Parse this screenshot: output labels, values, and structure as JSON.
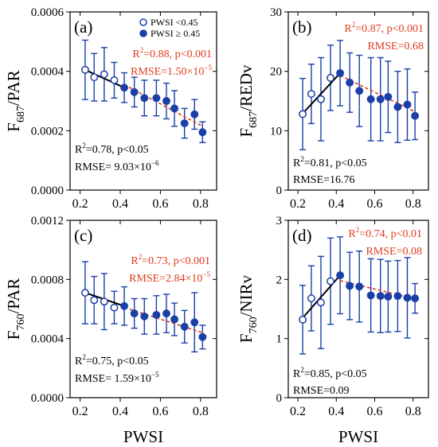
{
  "colors": {
    "marker": "#1a3fa8",
    "errorbar": "#1a3fa8",
    "fit_low": "#000000",
    "fit_high": "#e03a1e",
    "text_low": "#000000",
    "text_high": "#e03a1e"
  },
  "chart_data": [
    {
      "type": "scatter",
      "panel_label": "(a)",
      "xlabel": "",
      "ylabel_main": "F",
      "ylabel_sub": "687",
      "ylabel_rest": "/PAR",
      "xlim": [
        0.15,
        0.88
      ],
      "ylim": [
        0,
        0.0006
      ],
      "xticks": [
        0.2,
        0.4,
        0.6,
        0.8
      ],
      "xtick_labels": [
        "0.2",
        "0.4",
        "0.6",
        "0.8"
      ],
      "yticks": [
        0,
        0.0002,
        0.0004,
        0.0006
      ],
      "ytick_labels": [
        "0.0000",
        "0.0002",
        "0.0004",
        "0.0006"
      ],
      "legend": {
        "open_label": "PWSI <0.45",
        "filled_label": "PWSI ≥ 0.45"
      },
      "series": [
        {
          "name": "PWSI <0.45",
          "marker": "open",
          "x": [
            0.225,
            0.27,
            0.32,
            0.37
          ],
          "y": [
            0.000405,
            0.00038,
            0.00039,
            0.00037
          ],
          "err": [
            0.0001,
            8e-05,
            9e-05,
            6e-05
          ]
        },
        {
          "name": "PWSI ≥ 0.45",
          "marker": "filled",
          "x": [
            0.42,
            0.47,
            0.52,
            0.58,
            0.63,
            0.67,
            0.72,
            0.77,
            0.81
          ],
          "y": [
            0.000345,
            0.00033,
            0.00031,
            0.00031,
            0.0003,
            0.000275,
            0.000225,
            0.000255,
            0.000195
          ],
          "err": [
            5e-05,
            5e-05,
            6e-05,
            6e-05,
            6e-05,
            6e-05,
            5e-05,
            5e-05,
            3.5e-05
          ]
        }
      ],
      "fits": [
        {
          "x": [
            0.225,
            0.42
          ],
          "y": [
            0.000405,
            0.000345
          ],
          "style": "solid",
          "color": "#000000"
        },
        {
          "x": [
            0.42,
            0.81
          ],
          "y": [
            0.000355,
            0.000215
          ],
          "style": "dashed",
          "color": "#e03a1e"
        }
      ],
      "stats_high": {
        "r2": "=0.88, p<0.001",
        "rmse_main": "RMSE=1.50×10",
        "rmse_exp": "−5"
      },
      "stats_low": {
        "r2": "=0.78, p<0.05",
        "rmse_main": "RMSE= 9.03×10",
        "rmse_exp": "−6"
      }
    },
    {
      "type": "scatter",
      "panel_label": "(b)",
      "xlabel": "",
      "ylabel_main": "F",
      "ylabel_sub": "687",
      "ylabel_rest": "/REDv",
      "xlim": [
        0.15,
        0.88
      ],
      "ylim": [
        0,
        30
      ],
      "xticks": [
        0.2,
        0.4,
        0.6,
        0.8
      ],
      "xtick_labels": [
        "0.2",
        "0.4",
        "0.6",
        "0.8"
      ],
      "yticks": [
        0,
        10,
        20,
        30
      ],
      "ytick_labels": [
        "0",
        "10",
        "20",
        "30"
      ],
      "series": [
        {
          "name": "",
          "marker": "open",
          "x": [
            0.225,
            0.27,
            0.32,
            0.37
          ],
          "y": [
            12.8,
            16.2,
            15.3,
            18.9
          ],
          "err": [
            6,
            5,
            7,
            5.5
          ]
        },
        {
          "name": "",
          "marker": "filled",
          "x": [
            0.42,
            0.47,
            0.52,
            0.58,
            0.63,
            0.67,
            0.72,
            0.77,
            0.81
          ],
          "y": [
            19.7,
            18.1,
            16.7,
            15.3,
            15.3,
            15.7,
            14.0,
            14.4,
            12.5
          ],
          "err": [
            5.5,
            5,
            6,
            7,
            7,
            6,
            6,
            6,
            4
          ]
        }
      ],
      "fits": [
        {
          "x": [
            0.225,
            0.42
          ],
          "y": [
            12.9,
            19.7
          ],
          "style": "solid",
          "color": "#000000"
        },
        {
          "x": [
            0.42,
            0.81
          ],
          "y": [
            19.3,
            13.2
          ],
          "style": "dashed",
          "color": "#e03a1e"
        }
      ],
      "stats_high": {
        "r2": "=0.87, p<0.001",
        "rmse_main": "RMSE=0.68",
        "rmse_exp": ""
      },
      "stats_low": {
        "r2": "=0.81, p<0.05",
        "rmse_main": "RMSE=16.76",
        "rmse_exp": ""
      }
    },
    {
      "type": "scatter",
      "panel_label": "(c)",
      "xlabel": "PWSI",
      "ylabel_main": "F",
      "ylabel_sub": "760",
      "ylabel_rest": "/PAR",
      "xlim": [
        0.15,
        0.88
      ],
      "ylim": [
        0,
        0.0012
      ],
      "xticks": [
        0.2,
        0.4,
        0.6,
        0.8
      ],
      "xtick_labels": [
        "0.2",
        "0.4",
        "0.6",
        "0.8"
      ],
      "yticks": [
        0,
        0.0004,
        0.0008,
        0.0012
      ],
      "ytick_labels": [
        "0.0000",
        "0.0004",
        "0.0008",
        "0.0012"
      ],
      "series": [
        {
          "name": "",
          "marker": "open",
          "x": [
            0.225,
            0.27,
            0.32,
            0.37
          ],
          "y": [
            0.00071,
            0.00066,
            0.00065,
            0.00061
          ],
          "err": [
            0.00021,
            0.00016,
            0.00019,
            0.00011
          ]
        },
        {
          "name": "",
          "marker": "filled",
          "x": [
            0.42,
            0.47,
            0.52,
            0.58,
            0.63,
            0.67,
            0.72,
            0.77,
            0.81
          ],
          "y": [
            0.00062,
            0.00057,
            0.00055,
            0.00056,
            0.00057,
            0.00053,
            0.00048,
            0.00051,
            0.00041
          ],
          "err": [
            0.00013,
            0.0001,
            0.00012,
            0.00013,
            0.00013,
            0.00011,
            0.00011,
            0.0002,
            8e-05
          ]
        }
      ],
      "fits": [
        {
          "x": [
            0.225,
            0.42
          ],
          "y": [
            0.00071,
            0.00062
          ],
          "style": "solid",
          "color": "#000000"
        },
        {
          "x": [
            0.42,
            0.81
          ],
          "y": [
            0.00061,
            0.00044
          ],
          "style": "dashed",
          "color": "#e03a1e"
        }
      ],
      "stats_high": {
        "r2": "=0.73, p<0.001",
        "rmse_main": "RMSE=2.84×10",
        "rmse_exp": "−5"
      },
      "stats_low": {
        "r2": "=0.75, p<0.05",
        "rmse_main": "RMSE= 1.59×10",
        "rmse_exp": "−5"
      }
    },
    {
      "type": "scatter",
      "panel_label": "(d)",
      "xlabel": "PWSI",
      "ylabel_main": "F",
      "ylabel_sub": "760",
      "ylabel_rest": "/NIRv",
      "xlim": [
        0.15,
        0.88
      ],
      "ylim": [
        0,
        3
      ],
      "xticks": [
        0.2,
        0.4,
        0.6,
        0.8
      ],
      "xtick_labels": [
        "0.2",
        "0.4",
        "0.6",
        "0.8"
      ],
      "yticks": [
        0,
        1,
        2,
        3
      ],
      "ytick_labels": [
        "0",
        "1",
        "2",
        "3"
      ],
      "series": [
        {
          "name": "",
          "marker": "open",
          "x": [
            0.225,
            0.27,
            0.32,
            0.37
          ],
          "y": [
            1.32,
            1.68,
            1.61,
            1.97
          ],
          "err": [
            0.58,
            0.55,
            0.78,
            0.73
          ]
        },
        {
          "name": "",
          "marker": "filled",
          "x": [
            0.42,
            0.47,
            0.52,
            0.58,
            0.63,
            0.67,
            0.72,
            0.77,
            0.81
          ],
          "y": [
            2.07,
            1.89,
            1.88,
            1.73,
            1.72,
            1.71,
            1.72,
            1.69,
            1.68
          ],
          "err": [
            0.65,
            0.57,
            0.6,
            0.62,
            0.62,
            0.6,
            0.6,
            0.68,
            0.25
          ]
        }
      ],
      "fits": [
        {
          "x": [
            0.225,
            0.42
          ],
          "y": [
            1.35,
            2.07
          ],
          "style": "solid",
          "color": "#000000"
        },
        {
          "x": [
            0.42,
            0.81
          ],
          "y": [
            1.98,
            1.67
          ],
          "style": "dashed",
          "color": "#e03a1e"
        }
      ],
      "stats_high": {
        "r2": "=0.74, p<0.01",
        "rmse_main": "RMSE=0.08",
        "rmse_exp": ""
      },
      "stats_low": {
        "r2": "=0.85, p<0.05",
        "rmse_main": "RMSE=0.09",
        "rmse_exp": ""
      }
    }
  ]
}
